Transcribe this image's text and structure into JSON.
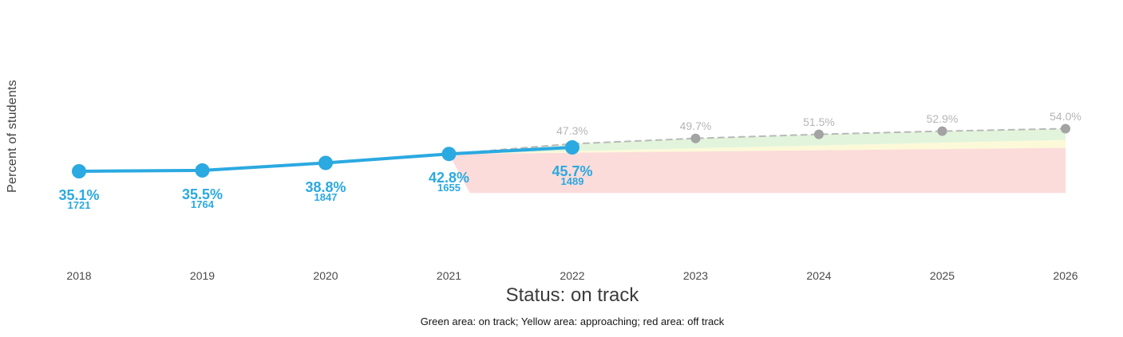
{
  "page": {
    "background": "#ffffff"
  },
  "chart_data": {
    "type": "line",
    "title": "Status: on track",
    "ylabel": "Percent of students",
    "caption": "Green area: on track; Yellow area: approaching; red area: off track",
    "x_years": [
      2018,
      2019,
      2020,
      2021,
      2022,
      2023,
      2024,
      2025,
      2026
    ],
    "ylim": [
      20,
      60
    ],
    "grid": false,
    "legend": "none",
    "series": [
      {
        "name": "actual",
        "style": "solid",
        "color": "#2BA9E1",
        "marker_color": "#2BA9E1",
        "line_width": 4,
        "marker_radius": 9,
        "x": [
          2018,
          2019,
          2020,
          2021,
          2022
        ],
        "values": [
          35.1,
          35.5,
          38.8,
          42.8,
          45.7
        ],
        "value_labels": [
          "35.1%",
          "35.5%",
          "38.8%",
          "42.8%",
          "45.7%"
        ],
        "counts": [
          "1721",
          "1764",
          "1847",
          "1655",
          "1489"
        ]
      },
      {
        "name": "projection",
        "style": "dashed",
        "color": "#B9B9B9",
        "marker_color": "#A3A3A3",
        "line_width": 2,
        "marker_radius": 6,
        "x": [
          2021,
          2022,
          2023,
          2024,
          2025,
          2026
        ],
        "values": [
          42.8,
          47.3,
          49.7,
          51.5,
          52.9,
          54.0
        ],
        "value_labels": [
          null,
          "47.3%",
          "49.7%",
          "51.5%",
          "52.9%",
          "54.0%"
        ],
        "marker_years": [
          2023,
          2024,
          2025,
          2026
        ]
      }
    ],
    "bands": [
      {
        "name": "green",
        "meaning": "on track",
        "color": "#E2F5DC",
        "points": [
          [
            2021,
            42.8
          ],
          [
            2022,
            47.3
          ],
          [
            2023,
            49.7
          ],
          [
            2024,
            51.5
          ],
          [
            2025,
            52.9
          ],
          [
            2026,
            54.0
          ],
          [
            2026,
            49.0
          ]
        ]
      },
      {
        "name": "yellow",
        "meaning": "approaching",
        "color": "#FCF9D9",
        "points": [
          [
            2021,
            42.8
          ],
          [
            2026,
            49.0
          ],
          [
            2026,
            45.5
          ]
        ]
      },
      {
        "name": "red",
        "meaning": "off track",
        "color": "#FBDCDA",
        "points": [
          [
            2021,
            42.8
          ],
          [
            2026,
            45.5
          ],
          [
            2026,
            25.5
          ],
          [
            2021.17,
            25.5
          ]
        ]
      }
    ]
  }
}
